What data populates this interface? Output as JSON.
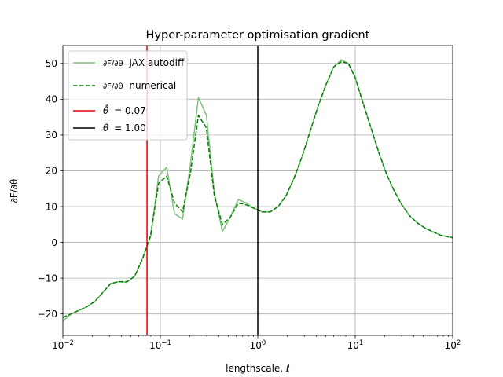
{
  "chart_data": {
    "type": "line",
    "title": "Hyper-parameter optimisation gradient",
    "xlabel": "lengthscale, ℓ",
    "ylabel": "∂F/∂θ",
    "xscale": "log",
    "xlim": [
      0.01,
      100
    ],
    "ylim": [
      -26,
      55
    ],
    "grid": true,
    "legend_position": "upper-left",
    "x_ticks": [
      {
        "value": 0.01,
        "base": "10",
        "exp": "−2"
      },
      {
        "value": 0.1,
        "base": "10",
        "exp": "−1"
      },
      {
        "value": 1,
        "base": "10",
        "exp": "0"
      },
      {
        "value": 10,
        "base": "10",
        "exp": "1"
      },
      {
        "value": 100,
        "base": "10",
        "exp": "2"
      }
    ],
    "y_ticks": [
      -20,
      -10,
      0,
      10,
      20,
      30,
      40,
      50
    ],
    "y_tick_labels": [
      "−20",
      "−10",
      "0",
      "10",
      "20",
      "30",
      "40",
      "50"
    ],
    "series": [
      {
        "name": "∂F/∂θ JAX autodiff",
        "legend_frac": "∂F/∂θ",
        "legend_rest": "JAX autodiff",
        "color": "#7fbf7f",
        "style": "solid",
        "x": [
          0.01,
          0.0121,
          0.0146,
          0.0176,
          0.0213,
          0.0257,
          0.031,
          0.0374,
          0.0452,
          0.0545,
          0.0658,
          0.0795,
          0.096,
          0.116,
          0.14,
          0.169,
          0.204,
          0.246,
          0.297,
          0.358,
          0.433,
          0.522,
          0.631,
          0.761,
          0.919,
          1.11,
          1.34,
          1.62,
          1.95,
          2.36,
          2.85,
          3.44,
          4.15,
          5.0,
          6.0,
          7.2,
          8.5,
          10.0,
          12.0,
          14.5,
          17.5,
          21,
          25,
          30,
          36,
          43,
          52,
          62,
          75,
          88,
          100
        ],
        "y": [
          -22,
          -20,
          -19,
          -18,
          -16.5,
          -14,
          -11.5,
          -11,
          -11.2,
          -9.5,
          -4.5,
          1.5,
          18.5,
          21,
          8,
          6.5,
          22,
          40.5,
          35.5,
          14,
          3,
          7,
          12,
          11,
          9.5,
          8.5,
          8.5,
          10,
          13,
          18,
          24,
          31,
          38,
          44,
          49,
          51,
          50,
          46,
          39,
          32,
          25,
          19,
          14.5,
          10.5,
          7.5,
          5.5,
          4,
          3,
          2,
          1.6,
          1.3
        ]
      },
      {
        "name": "∂F/∂θ numerical",
        "legend_frac": "∂F/∂θ",
        "legend_rest": "numerical",
        "color": "#008000",
        "style": "dashed",
        "x": [
          0.01,
          0.0121,
          0.0146,
          0.0176,
          0.0213,
          0.0257,
          0.031,
          0.0374,
          0.0452,
          0.0545,
          0.0658,
          0.0795,
          0.096,
          0.116,
          0.14,
          0.169,
          0.204,
          0.246,
          0.297,
          0.358,
          0.433,
          0.522,
          0.631,
          0.761,
          0.919,
          1.11,
          1.34,
          1.62,
          1.95,
          2.36,
          2.85,
          3.44,
          4.15,
          5.0,
          6.0,
          7.2,
          8.5,
          10.0,
          12.0,
          14.5,
          17.5,
          21,
          25,
          30,
          36,
          43,
          52,
          62,
          75,
          88,
          100
        ],
        "y": [
          -21,
          -20,
          -19,
          -18,
          -16.5,
          -14,
          -11.5,
          -11,
          -11,
          -9.5,
          -4.5,
          2,
          16.5,
          18.5,
          11,
          8.5,
          19.5,
          35.5,
          32,
          13,
          5,
          7,
          11,
          10.5,
          9.5,
          8.5,
          8.5,
          10,
          13,
          18,
          24,
          31,
          38,
          44,
          49,
          50.5,
          50,
          46,
          39,
          32,
          25,
          19,
          14.5,
          10.5,
          7.5,
          5.5,
          4,
          3,
          2,
          1.6,
          1.3
        ]
      }
    ],
    "vlines": [
      {
        "name": "θ̂ = 0.07",
        "symbol": "θ̂",
        "value_text": "= 0.07",
        "x": 0.073,
        "color": "#e00000"
      },
      {
        "name": "θ = 1.00",
        "symbol": "θ",
        "value_text": "= 1.00",
        "x": 1.0,
        "color": "#000000"
      }
    ]
  }
}
